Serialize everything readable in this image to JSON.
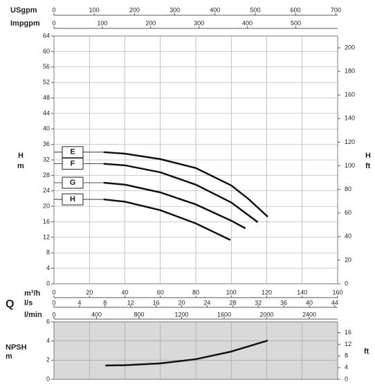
{
  "chart_data": [
    {
      "type": "line",
      "quantity_label": "Q",
      "ylabel": "H",
      "ylabel_unit": "m",
      "y2label": "H",
      "y2label_unit": "ft",
      "xlabel": "m³/h",
      "xlim": [
        0,
        160
      ],
      "xticks": [
        0,
        20,
        40,
        60,
        80,
        100,
        120,
        140,
        160
      ],
      "ylim": [
        0,
        64
      ],
      "yticks": [
        0,
        4,
        8,
        12,
        16,
        20,
        24,
        28,
        32,
        36,
        40,
        44,
        48,
        52,
        56,
        60,
        64
      ],
      "y2lim": [
        0,
        210
      ],
      "y2ticks": [
        0,
        20,
        40,
        60,
        80,
        100,
        120,
        140,
        160,
        180,
        200
      ],
      "grid": true,
      "top_axes": [
        {
          "label": "USgpm",
          "lim": [
            0,
            704.5
          ],
          "ticks": [
            0,
            100,
            200,
            300,
            400,
            500,
            600,
            700
          ]
        },
        {
          "label": "Impgpm",
          "lim": [
            0,
            586.6
          ],
          "ticks": [
            0,
            100,
            200,
            300,
            400,
            500
          ]
        }
      ],
      "bottom_axes": [
        {
          "label": "l/s",
          "lim": [
            0,
            44.44
          ],
          "ticks": [
            0,
            4,
            8,
            12,
            16,
            20,
            24,
            28,
            32,
            36,
            40,
            44
          ]
        },
        {
          "label": "l/min",
          "lim": [
            0,
            2666.7
          ],
          "ticks": [
            0,
            400,
            800,
            1200,
            1600,
            2000,
            2400
          ]
        }
      ],
      "series": [
        {
          "name": "E",
          "color": "#111111",
          "x": [
            28,
            40,
            60,
            80,
            100,
            110,
            120.6
          ],
          "values": [
            34,
            33.6,
            32.2,
            29.9,
            25.4,
            21.8,
            17.3
          ]
        },
        {
          "name": "F",
          "color": "#111111",
          "x": [
            28,
            40,
            60,
            80,
            100,
            115
          ],
          "values": [
            31,
            30.6,
            28.8,
            25.6,
            21,
            15.9
          ]
        },
        {
          "name": "G",
          "color": "#111111",
          "x": [
            28,
            40,
            60,
            80,
            100,
            108
          ],
          "values": [
            26.1,
            25.6,
            23.6,
            20.5,
            16.3,
            14.3
          ]
        },
        {
          "name": "H",
          "color": "#111111",
          "x": [
            28,
            40,
            60,
            80,
            99.5
          ],
          "values": [
            21.8,
            21.2,
            19,
            15.6,
            11.3
          ]
        }
      ]
    },
    {
      "type": "line",
      "ylabel": "NPSH",
      "ylabel_unit": "m",
      "y2label": "ft",
      "xlim": [
        0,
        160
      ],
      "ylim": [
        0,
        6
      ],
      "yticks": [
        0,
        2,
        4,
        6
      ],
      "y2lim": [
        0,
        19.69
      ],
      "y2ticks": [
        0,
        4,
        8,
        12,
        16
      ],
      "grid": true,
      "background": "#d9d9d9",
      "series": [
        {
          "name": "NPSH",
          "color": "#111111",
          "x": [
            29,
            40,
            60,
            80,
            100,
            120.6
          ],
          "values": [
            1.45,
            1.47,
            1.66,
            2.1,
            2.9,
            4.05
          ]
        }
      ]
    }
  ]
}
